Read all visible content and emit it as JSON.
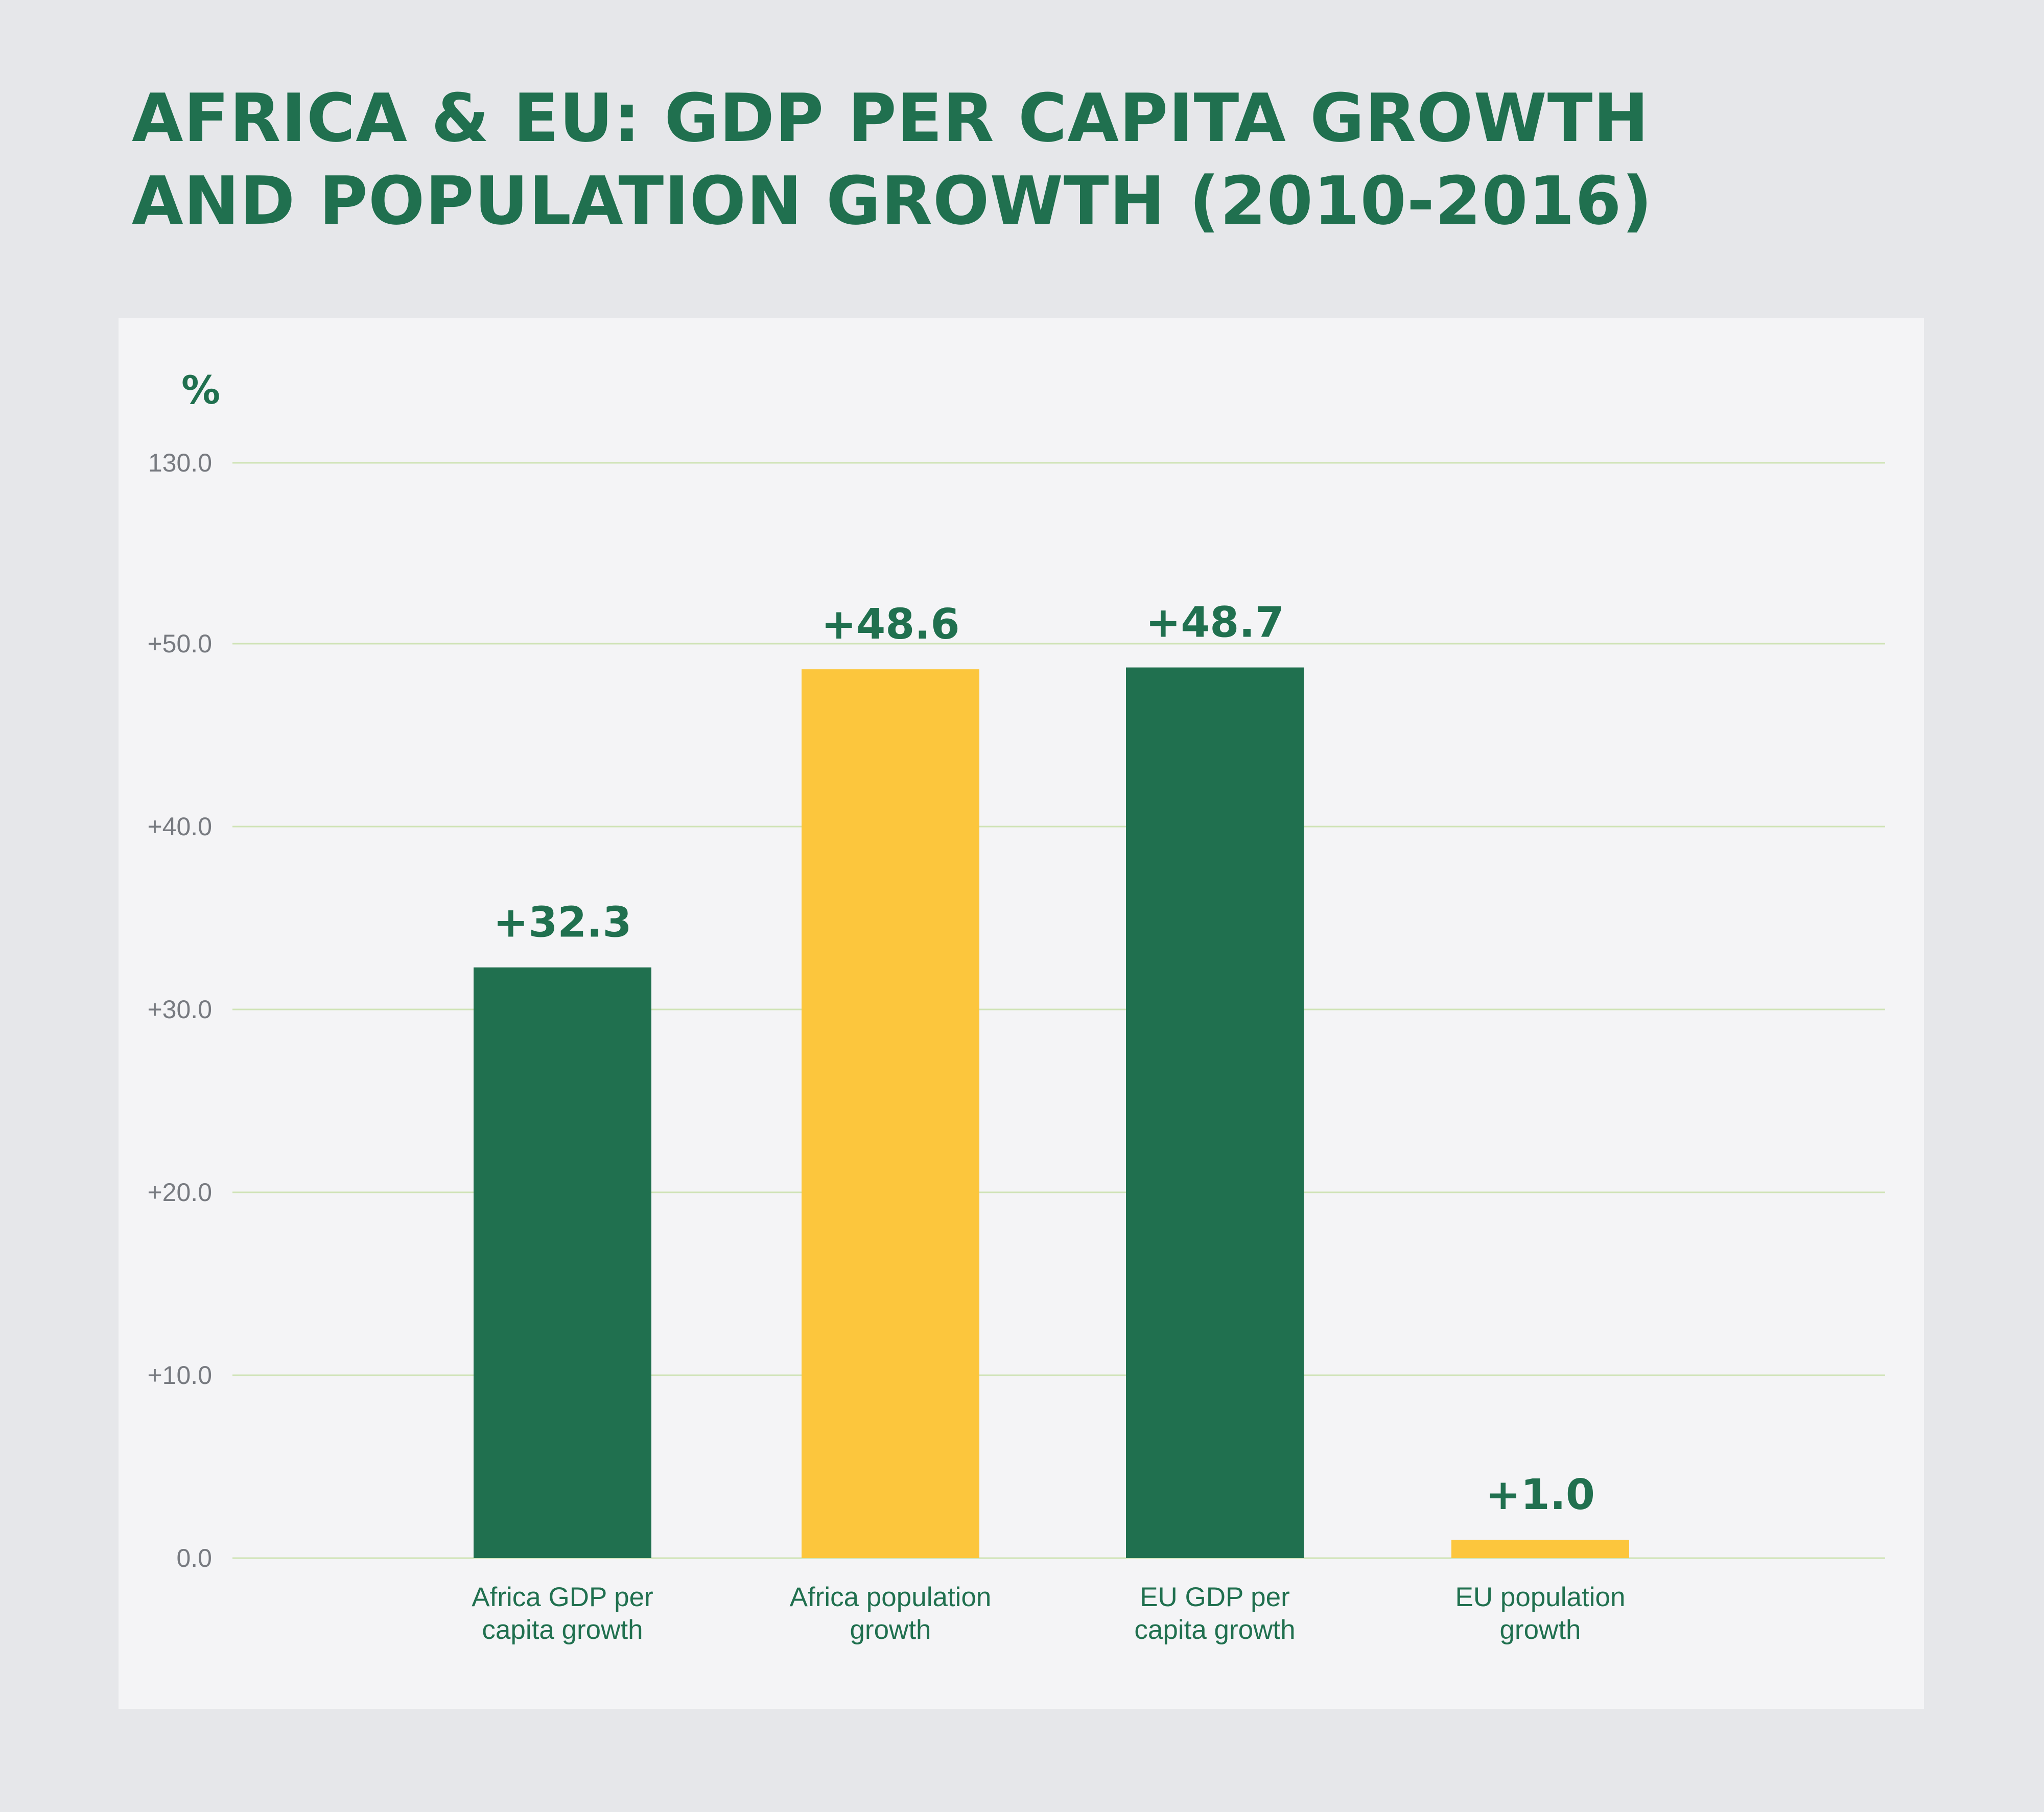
{
  "header": {
    "title_line1": "AFRICA & EU: GDP PER CAPITA GROWTH",
    "title_line2": "AND POPULATION GROWTH (2010-2016)"
  },
  "colors": {
    "green": "#20704f",
    "yellow": "#fcc63d",
    "gridline": "#cfe3b6",
    "panel": "#f4f4f6",
    "background": "#e6e7ea"
  },
  "chart_data": {
    "type": "bar",
    "title": "AFRICA & EU: GDP PER CAPITA GROWTH AND POPULATION GROWTH (2010-2016)",
    "ylabel": "%",
    "xlabel": "",
    "axis_break": true,
    "ylim": [
      0,
      130
    ],
    "ytick_values": [
      0,
      10,
      20,
      30,
      40,
      50,
      130
    ],
    "ytick_labels": [
      "0.0",
      "+10.0",
      "+20.0",
      "+30.0",
      "+40.0",
      "+50.0",
      "130.0"
    ],
    "categories": [
      [
        "Africa GDP per",
        "capita growth"
      ],
      [
        "Africa population",
        "growth"
      ],
      [
        "EU GDP per",
        "capita growth"
      ],
      [
        "EU population",
        "growth"
      ]
    ],
    "values": [
      32.3,
      48.6,
      48.7,
      1.0
    ],
    "value_labels": [
      "+32.3",
      "+48.6",
      "+48.7",
      "+1.0"
    ],
    "bar_colors": [
      "#20704f",
      "#fcc63d",
      "#20704f",
      "#fcc63d"
    ],
    "grid": true,
    "legend": "none"
  }
}
